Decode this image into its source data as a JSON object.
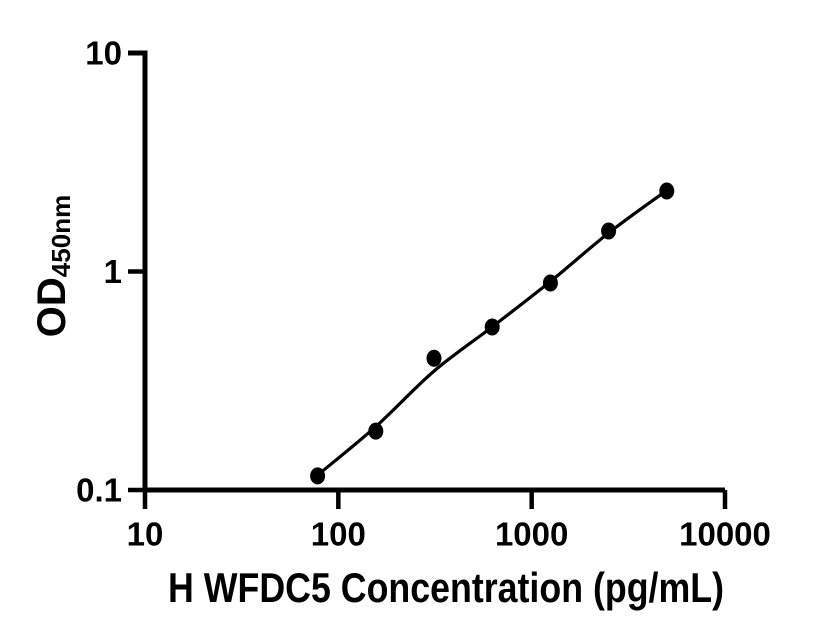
{
  "figure": {
    "background_color": "#ffffff",
    "foreground_color": "#000000"
  },
  "chart_data": {
    "type": "scatter",
    "title": "",
    "xlabel": "H WFDC5 Concentration (pg/mL)",
    "ylabel_main": "OD",
    "ylabel_sub": "450nm",
    "x_scale": "log10",
    "y_scale": "log10",
    "xlim": [
      10,
      10000
    ],
    "ylim": [
      0.1,
      10
    ],
    "grid": false,
    "legend": false,
    "x_ticks": [
      {
        "value": 10,
        "label": "10"
      },
      {
        "value": 100,
        "label": "100"
      },
      {
        "value": 1000,
        "label": "1000"
      },
      {
        "value": 10000,
        "label": "10000"
      }
    ],
    "y_ticks": [
      {
        "value": 0.1,
        "label": "0.1"
      },
      {
        "value": 1,
        "label": "1"
      },
      {
        "value": 10,
        "label": "10"
      }
    ],
    "series": [
      {
        "name": "standard-points",
        "type": "scatter",
        "marker": "filled-circle",
        "color": "#000000",
        "x": [
          78.125,
          156.25,
          312.5,
          625,
          1250,
          2500,
          5000
        ],
        "y": [
          0.116,
          0.186,
          0.401,
          0.557,
          0.886,
          1.533,
          2.336
        ]
      },
      {
        "name": "fit-line",
        "type": "line",
        "color": "#000000",
        "x": [
          78.125,
          156.25,
          312.5,
          625,
          1250,
          2500,
          5000
        ],
        "y": [
          0.117,
          0.195,
          0.35,
          0.558,
          0.9,
          1.5,
          2.352
        ]
      }
    ]
  }
}
